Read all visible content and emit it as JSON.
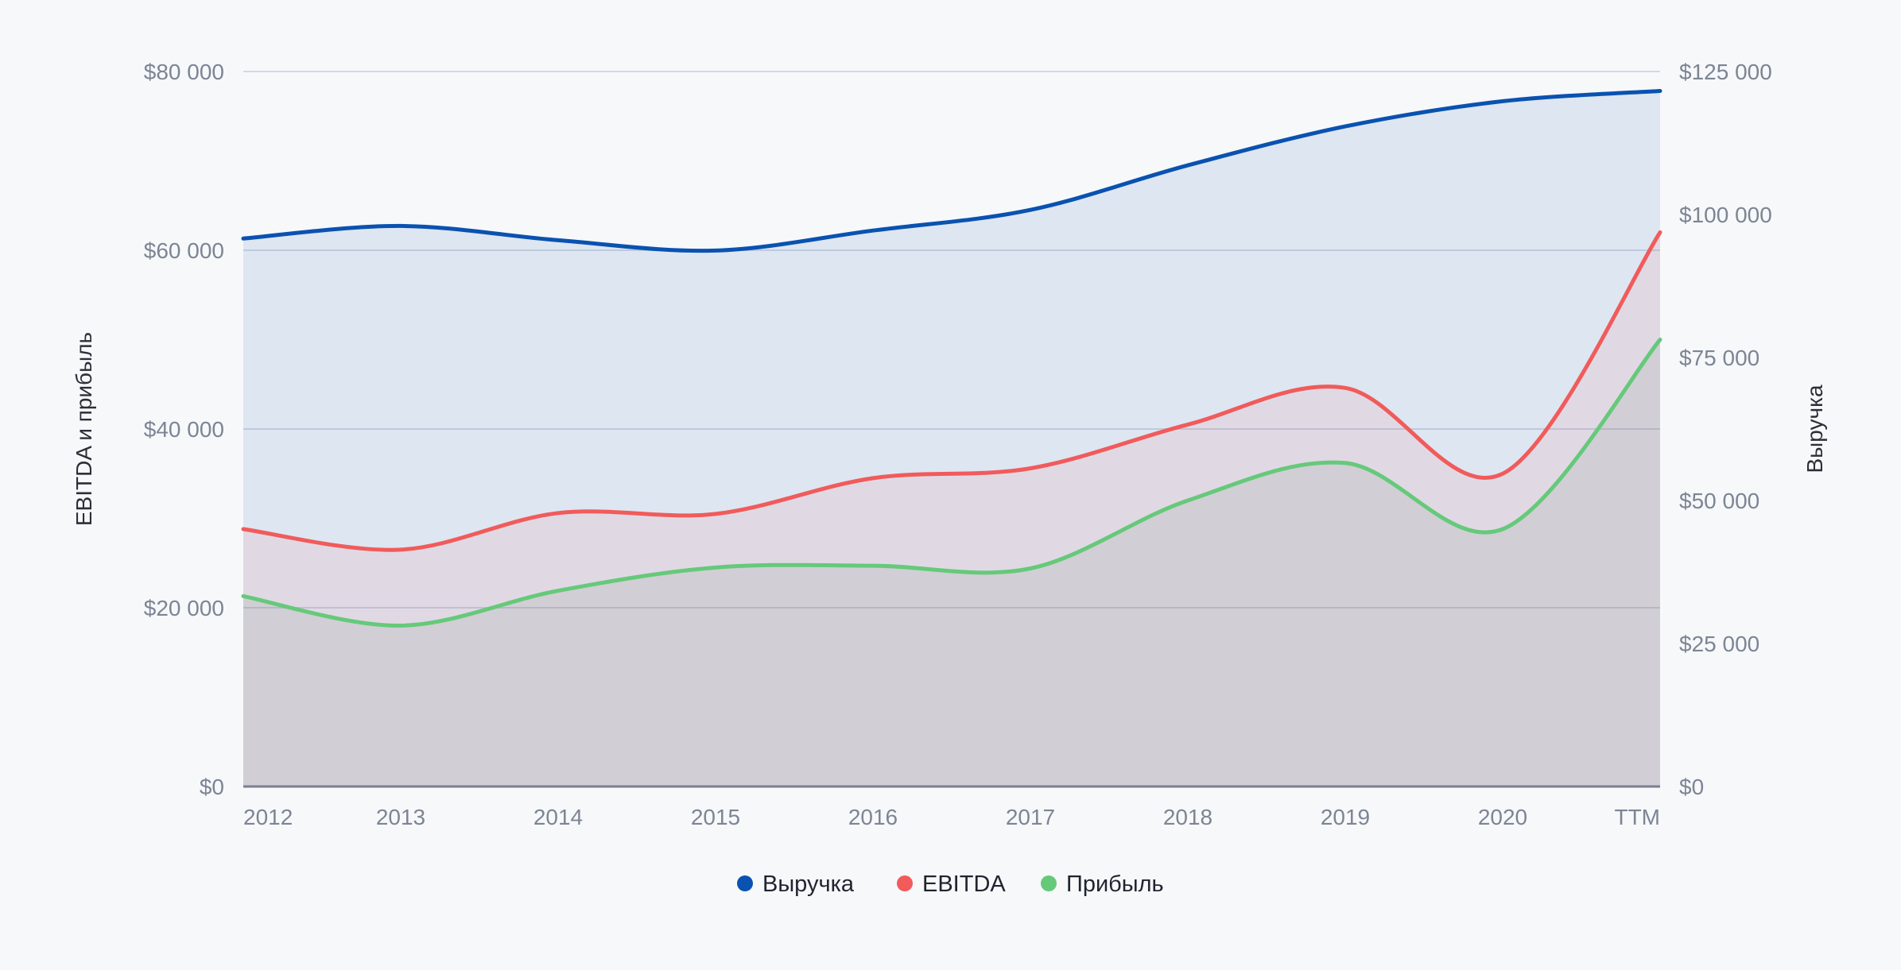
{
  "chart_data": {
    "type": "area",
    "categories": [
      "2012",
      "2013",
      "2014",
      "2015",
      "2016",
      "2017",
      "2018",
      "2019",
      "2020",
      "TTM"
    ],
    "series": [
      {
        "name": "Выручка",
        "axis": "right",
        "color": "#0a52b0",
        "values": [
          95800,
          98000,
          95500,
          93700,
          97200,
          100800,
          108600,
          115400,
          119800,
          121600
        ]
      },
      {
        "name": "EBITDA",
        "axis": "left",
        "color": "#f15b5b",
        "values": [
          28800,
          26500,
          30600,
          30500,
          34500,
          35600,
          40500,
          44600,
          35000,
          62000
        ]
      },
      {
        "name": "Прибыль",
        "axis": "left",
        "color": "#66c97a",
        "values": [
          21300,
          18000,
          21900,
          24500,
          24700,
          24400,
          32000,
          36200,
          28800,
          50000
        ]
      }
    ],
    "left_axis": {
      "title": "EBITDA и прибыль",
      "range": [
        0,
        80000
      ],
      "ticks": [
        {
          "value": 0,
          "label": "$0"
        },
        {
          "value": 20000,
          "label": "$20 000"
        },
        {
          "value": 40000,
          "label": "$40 000"
        },
        {
          "value": 60000,
          "label": "$60 000"
        },
        {
          "value": 80000,
          "label": "$80 000"
        }
      ]
    },
    "right_axis": {
      "title": "Выручка",
      "range": [
        0,
        125000
      ],
      "ticks": [
        {
          "value": 0,
          "label": "$0"
        },
        {
          "value": 25000,
          "label": "$25 000"
        },
        {
          "value": 50000,
          "label": "$50 000"
        },
        {
          "value": 75000,
          "label": "$75 000"
        },
        {
          "value": 100000,
          "label": "$100 000"
        },
        {
          "value": 125000,
          "label": "$125 000"
        }
      ]
    },
    "grid": true,
    "legend": {
      "position": "bottom-center",
      "items": [
        {
          "label": "Выручка",
          "color": "#0a52b0"
        },
        {
          "label": "EBITDA",
          "color": "#f15b5b"
        },
        {
          "label": "Прибыль",
          "color": "#66c97a"
        }
      ]
    }
  }
}
